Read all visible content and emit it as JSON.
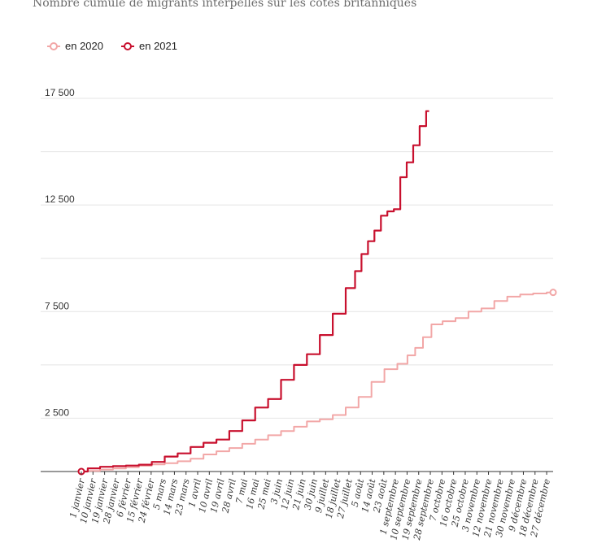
{
  "title": "Nombre cumulé de migrants interpellés sur les côtes britanniques",
  "legend": {
    "s2020": "en 2020",
    "s2021": "en 2021"
  },
  "colors": {
    "s2020": "#f2a7a7",
    "s2021": "#c8102e",
    "grid": "#e4e4e4",
    "axis": "#333333"
  },
  "chart_data": {
    "type": "line",
    "title": "Nombre cumulé de migrants interpellés sur les côtes britanniques",
    "xlabel": "",
    "ylabel": "",
    "xlim": [
      1,
      366
    ],
    "ylim": [
      0,
      17500
    ],
    "yticks": [
      {
        "value": 2500,
        "label": "2 500"
      },
      {
        "value": 7500,
        "label": "7 500"
      },
      {
        "value": 12500,
        "label": "12 500"
      },
      {
        "value": 17500,
        "label": "17 500"
      }
    ],
    "gridlines": [
      2500,
      5000,
      7500,
      10000,
      12500,
      15000,
      17500
    ],
    "xticks": [
      {
        "day": 1,
        "label": "1 janvier"
      },
      {
        "day": 10,
        "label": "10 janvier"
      },
      {
        "day": 19,
        "label": "19 janvier"
      },
      {
        "day": 28,
        "label": "28 janvier"
      },
      {
        "day": 37,
        "label": "6 février"
      },
      {
        "day": 46,
        "label": "15 février"
      },
      {
        "day": 55,
        "label": "24 février"
      },
      {
        "day": 64,
        "label": "5 mars"
      },
      {
        "day": 73,
        "label": "14 mars"
      },
      {
        "day": 82,
        "label": "23 mars"
      },
      {
        "day": 91,
        "label": "1 avril"
      },
      {
        "day": 100,
        "label": "10 avril"
      },
      {
        "day": 109,
        "label": "19 avril"
      },
      {
        "day": 118,
        "label": "28 avril"
      },
      {
        "day": 127,
        "label": "7 mai"
      },
      {
        "day": 136,
        "label": "16 mai"
      },
      {
        "day": 145,
        "label": "25 mai"
      },
      {
        "day": 154,
        "label": "3 juin"
      },
      {
        "day": 163,
        "label": "12 juin"
      },
      {
        "day": 172,
        "label": "21 juin"
      },
      {
        "day": 181,
        "label": "30 juin"
      },
      {
        "day": 190,
        "label": "9 juillet"
      },
      {
        "day": 199,
        "label": "18 juillet"
      },
      {
        "day": 208,
        "label": "27 juillet"
      },
      {
        "day": 217,
        "label": "5 août"
      },
      {
        "day": 226,
        "label": "14 août"
      },
      {
        "day": 235,
        "label": "23 août"
      },
      {
        "day": 244,
        "label": "1 septembre"
      },
      {
        "day": 253,
        "label": "10 septembre"
      },
      {
        "day": 262,
        "label": "19 septembre"
      },
      {
        "day": 271,
        "label": "28 septembre"
      },
      {
        "day": 280,
        "label": "7 octobre"
      },
      {
        "day": 289,
        "label": "16 octobre"
      },
      {
        "day": 298,
        "label": "25 octobre"
      },
      {
        "day": 307,
        "label": "3 novembre"
      },
      {
        "day": 316,
        "label": "12 novembre"
      },
      {
        "day": 325,
        "label": "21 novembre"
      },
      {
        "day": 334,
        "label": "30 novembre"
      },
      {
        "day": 343,
        "label": "9 décembre"
      },
      {
        "day": 352,
        "label": "18 décembre"
      },
      {
        "day": 361,
        "label": "27 décembre"
      }
    ],
    "series": [
      {
        "name": "en 2020",
        "x": [
          1,
          10,
          20,
          30,
          40,
          50,
          60,
          70,
          80,
          90,
          100,
          110,
          120,
          130,
          140,
          150,
          160,
          170,
          180,
          190,
          200,
          210,
          220,
          230,
          240,
          250,
          256,
          262,
          268,
          275,
          285,
          295,
          305,
          315,
          325,
          335,
          345,
          355,
          366
        ],
        "y": [
          0,
          30,
          90,
          140,
          200,
          270,
          330,
          390,
          480,
          600,
          800,
          950,
          1100,
          1300,
          1500,
          1700,
          1900,
          2100,
          2350,
          2450,
          2650,
          3000,
          3500,
          4200,
          4800,
          5050,
          5450,
          5800,
          6300,
          6900,
          7050,
          7200,
          7500,
          7650,
          8000,
          8200,
          8300,
          8350,
          8400
        ]
      },
      {
        "name": "en 2021",
        "x": [
          1,
          10,
          20,
          30,
          40,
          50,
          60,
          70,
          80,
          90,
          100,
          110,
          120,
          130,
          140,
          150,
          160,
          170,
          180,
          190,
          200,
          210,
          215,
          220,
          225,
          230,
          235,
          240,
          245,
          250,
          255,
          260,
          265,
          270
        ],
        "y": [
          0,
          150,
          220,
          250,
          280,
          320,
          450,
          700,
          850,
          1150,
          1350,
          1500,
          1900,
          2400,
          3000,
          3400,
          4300,
          5000,
          5500,
          6400,
          7400,
          8600,
          9400,
          10200,
          10800,
          11300,
          12000,
          12200,
          12300,
          13800,
          14500,
          15300,
          16200,
          16900
        ]
      }
    ]
  }
}
